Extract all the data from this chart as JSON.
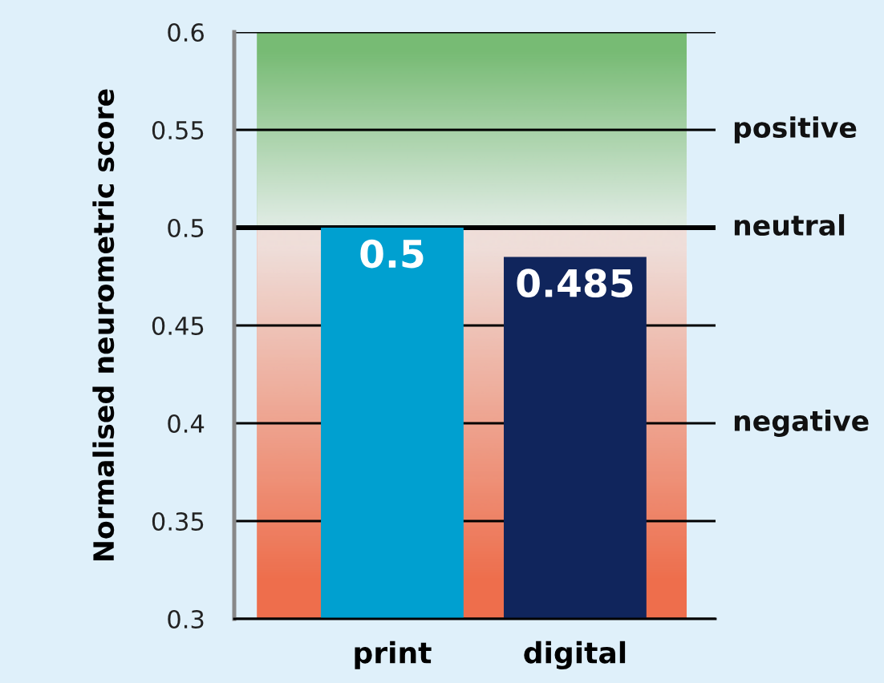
{
  "chart_data": {
    "type": "bar",
    "ylabel": "Normalised neurometric score",
    "categories": [
      "print",
      "digital"
    ],
    "values": [
      0.5,
      0.485
    ],
    "colors": [
      "#00a0d0",
      "#10255c"
    ],
    "data_labels": true,
    "ylim": [
      0.3,
      0.6
    ],
    "yticks": [
      0.3,
      0.35,
      0.4,
      0.45,
      0.5,
      0.55,
      0.6
    ],
    "grid": "y",
    "bands": [
      {
        "axis": "y",
        "from": 0.5,
        "to": 0.6,
        "label": "positive",
        "color": "#77bb74"
      },
      {
        "axis": "y",
        "from": 0.3,
        "to": 0.5,
        "label": "negative",
        "color": "#ee6e4c"
      }
    ],
    "ref_lines": [
      {
        "axis": "y",
        "value": 0.5,
        "label": "neutral",
        "color": "#000000"
      }
    ]
  }
}
